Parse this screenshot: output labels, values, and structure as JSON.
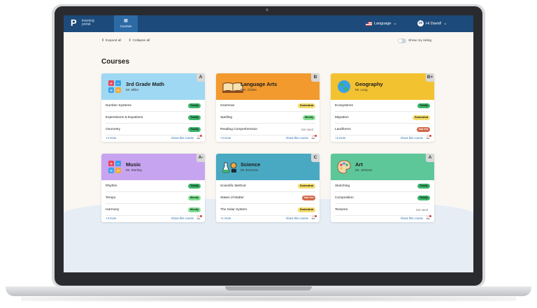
{
  "app": {
    "logo_text": "learning portal",
    "nav_tab_label": "Courses",
    "language_label": "Language",
    "user_initials": "DE",
    "user_greeting": "Hi David!"
  },
  "controls": {
    "expand_all": "Expand all",
    "collapse_all": "Collapse all",
    "show_rating": "Show my rating"
  },
  "page": {
    "title": "Courses"
  },
  "courses": [
    {
      "title": "3rd Grade Math",
      "teacher": "Mr. Miller",
      "grade": "A",
      "color": "#9fd8f2",
      "icon": "math-blocks-icon",
      "topics": [
        {
          "name": "Number Systems",
          "status": "Totally"
        },
        {
          "name": "Expressions & Equations",
          "status": "Totally"
        },
        {
          "name": "Geometry",
          "status": "Totally"
        }
      ],
      "more": "+2 more",
      "about": "About this course"
    },
    {
      "title": "Language Arts",
      "teacher": "Mrs. Clarke",
      "grade": "B",
      "color": "#f29a2e",
      "icon": "open-book-icon",
      "topics": [
        {
          "name": "Grammar",
          "status": "Somewhat"
        },
        {
          "name": "Spelling",
          "status": "Mostly"
        },
        {
          "name": "Reading Comprehension",
          "status": "Not rated"
        }
      ],
      "more": "+3 more",
      "about": "About this course"
    },
    {
      "title": "Geography",
      "teacher": "Mr. Long",
      "grade": "B+",
      "color": "#f3c230",
      "icon": "globe-icon",
      "topics": [
        {
          "name": "Ecosystems",
          "status": "Totally"
        },
        {
          "name": "Migration",
          "status": "Somewhat"
        },
        {
          "name": "Landforms",
          "status": "Not Yet"
        }
      ],
      "more": "+2 more",
      "about": "About this course"
    },
    {
      "title": "Music",
      "teacher": "Mr. Sterling",
      "grade": "A-",
      "color": "#c7a4f0",
      "icon": "music-blocks-icon",
      "topics": [
        {
          "name": "Rhythm",
          "status": "Totally"
        },
        {
          "name": "Tempo",
          "status": "Mostly"
        },
        {
          "name": "Harmony",
          "status": "Mostly"
        }
      ],
      "more": "+3 more",
      "about": "About this course"
    },
    {
      "title": "Science",
      "teacher": "Mr. Emerson",
      "grade": "C",
      "color": "#4aa9c2",
      "icon": "lab-flask-icon",
      "topics": [
        {
          "name": "Scientific Method",
          "status": "Somewhat"
        },
        {
          "name": "States of Matter",
          "status": "Not Yet"
        },
        {
          "name": "The Solar System",
          "status": "Somewhat"
        }
      ],
      "more": "+1 more",
      "about": "About this course"
    },
    {
      "title": "Art",
      "teacher": "Mr. Johnson",
      "grade": "A",
      "color": "#5ec79a",
      "icon": "palette-icon",
      "topics": [
        {
          "name": "Sketching",
          "status": "Totally"
        },
        {
          "name": "Composition",
          "status": "Totally"
        },
        {
          "name": "Textures",
          "status": "Not rated"
        }
      ],
      "more": "",
      "about": "About this course"
    }
  ]
}
